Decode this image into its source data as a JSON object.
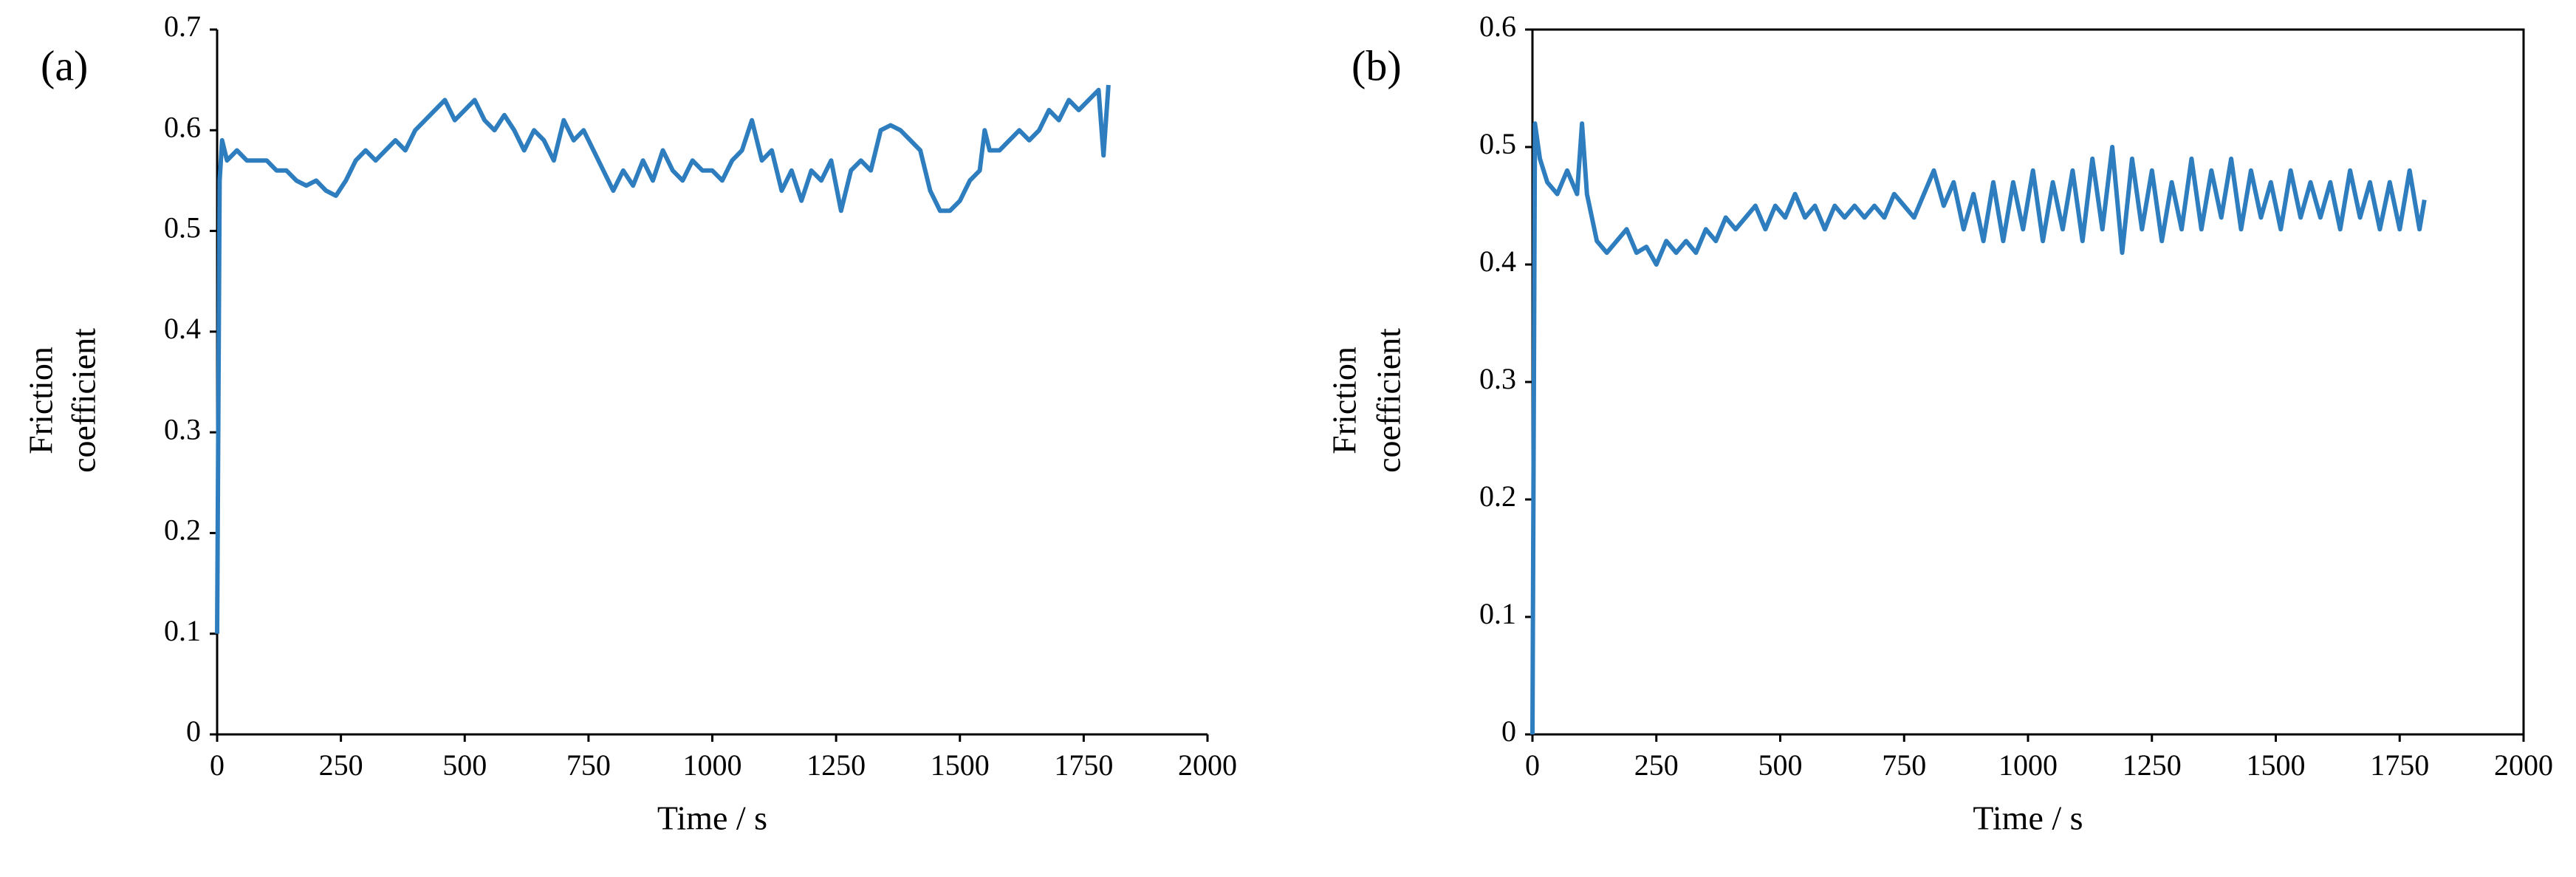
{
  "chart_data": [
    {
      "type": "line",
      "panel_label": "(a)",
      "xlabel": "Time / s",
      "ylabel": [
        "Friction",
        "coefficient"
      ],
      "x": [
        0,
        5,
        10,
        20,
        40,
        60,
        80,
        100,
        120,
        140,
        160,
        180,
        200,
        220,
        240,
        260,
        280,
        300,
        320,
        340,
        360,
        380,
        400,
        420,
        440,
        460,
        480,
        500,
        520,
        540,
        560,
        580,
        600,
        620,
        640,
        660,
        680,
        700,
        720,
        740,
        760,
        780,
        800,
        820,
        840,
        860,
        880,
        900,
        920,
        940,
        960,
        980,
        1000,
        1020,
        1040,
        1060,
        1080,
        1100,
        1120,
        1140,
        1160,
        1180,
        1200,
        1220,
        1240,
        1260,
        1280,
        1300,
        1320,
        1340,
        1360,
        1380,
        1400,
        1420,
        1440,
        1460,
        1480,
        1500,
        1520,
        1540,
        1550,
        1560,
        1580,
        1600,
        1620,
        1640,
        1660,
        1680,
        1700,
        1720,
        1740,
        1760,
        1780,
        1790,
        1800
      ],
      "series": [
        {
          "color": "#2e7ebf",
          "values": [
            0.1,
            0.55,
            0.59,
            0.57,
            0.58,
            0.57,
            0.57,
            0.57,
            0.56,
            0.56,
            0.55,
            0.545,
            0.55,
            0.54,
            0.535,
            0.55,
            0.57,
            0.58,
            0.57,
            0.58,
            0.59,
            0.58,
            0.6,
            0.61,
            0.62,
            0.63,
            0.61,
            0.62,
            0.63,
            0.61,
            0.6,
            0.615,
            0.6,
            0.58,
            0.6,
            0.59,
            0.57,
            0.61,
            0.59,
            0.6,
            0.58,
            0.56,
            0.54,
            0.56,
            0.545,
            0.57,
            0.55,
            0.58,
            0.56,
            0.55,
            0.57,
            0.56,
            0.56,
            0.55,
            0.57,
            0.58,
            0.61,
            0.57,
            0.58,
            0.54,
            0.56,
            0.53,
            0.56,
            0.55,
            0.57,
            0.52,
            0.56,
            0.57,
            0.56,
            0.6,
            0.605,
            0.6,
            0.59,
            0.58,
            0.54,
            0.52,
            0.52,
            0.53,
            0.55,
            0.56,
            0.6,
            0.58,
            0.58,
            0.59,
            0.6,
            0.59,
            0.6,
            0.62,
            0.61,
            0.63,
            0.62,
            0.63,
            0.64,
            0.575,
            0.645
          ]
        }
      ],
      "xlim": [
        0,
        2000
      ],
      "ylim": [
        0,
        0.7
      ],
      "xticks": [
        0,
        250,
        500,
        750,
        1000,
        1250,
        1500,
        1750,
        2000
      ],
      "yticks": [
        0,
        0.1,
        0.2,
        0.3,
        0.4,
        0.5,
        0.6,
        0.7
      ],
      "frame": false
    },
    {
      "type": "line",
      "panel_label": "(b)",
      "xlabel": "Time / s",
      "ylabel": [
        "Friction",
        "coefficient"
      ],
      "x": [
        0,
        5,
        15,
        30,
        50,
        70,
        90,
        100,
        110,
        130,
        150,
        170,
        190,
        210,
        230,
        250,
        270,
        290,
        310,
        330,
        350,
        370,
        390,
        410,
        430,
        450,
        470,
        490,
        510,
        530,
        550,
        570,
        590,
        610,
        630,
        650,
        670,
        690,
        710,
        730,
        750,
        770,
        790,
        810,
        830,
        850,
        870,
        890,
        910,
        930,
        950,
        970,
        990,
        1010,
        1030,
        1050,
        1070,
        1090,
        1110,
        1130,
        1150,
        1170,
        1190,
        1210,
        1230,
        1250,
        1270,
        1290,
        1310,
        1330,
        1350,
        1370,
        1390,
        1410,
        1430,
        1450,
        1470,
        1490,
        1510,
        1530,
        1550,
        1570,
        1590,
        1610,
        1630,
        1650,
        1670,
        1690,
        1710,
        1730,
        1750,
        1770,
        1790,
        1800
      ],
      "series": [
        {
          "color": "#2e7ebf",
          "values": [
            0,
            0.52,
            0.49,
            0.47,
            0.46,
            0.48,
            0.46,
            0.52,
            0.46,
            0.42,
            0.41,
            0.42,
            0.43,
            0.41,
            0.415,
            0.4,
            0.42,
            0.41,
            0.42,
            0.41,
            0.43,
            0.42,
            0.44,
            0.43,
            0.44,
            0.45,
            0.43,
            0.45,
            0.44,
            0.46,
            0.44,
            0.45,
            0.43,
            0.45,
            0.44,
            0.45,
            0.44,
            0.45,
            0.44,
            0.46,
            0.45,
            0.44,
            0.46,
            0.48,
            0.45,
            0.47,
            0.43,
            0.46,
            0.42,
            0.47,
            0.42,
            0.47,
            0.43,
            0.48,
            0.42,
            0.47,
            0.43,
            0.48,
            0.42,
            0.49,
            0.43,
            0.5,
            0.41,
            0.49,
            0.43,
            0.48,
            0.42,
            0.47,
            0.43,
            0.49,
            0.43,
            0.48,
            0.44,
            0.49,
            0.43,
            0.48,
            0.44,
            0.47,
            0.43,
            0.48,
            0.44,
            0.47,
            0.44,
            0.47,
            0.43,
            0.48,
            0.44,
            0.47,
            0.43,
            0.47,
            0.43,
            0.48,
            0.43,
            0.455
          ]
        }
      ],
      "xlim": [
        0,
        2000
      ],
      "ylim": [
        0,
        0.6
      ],
      "xticks": [
        0,
        250,
        500,
        750,
        1000,
        1250,
        1500,
        1750,
        2000
      ],
      "yticks": [
        0,
        0.1,
        0.2,
        0.3,
        0.4,
        0.5,
        0.6
      ],
      "frame": true
    }
  ]
}
